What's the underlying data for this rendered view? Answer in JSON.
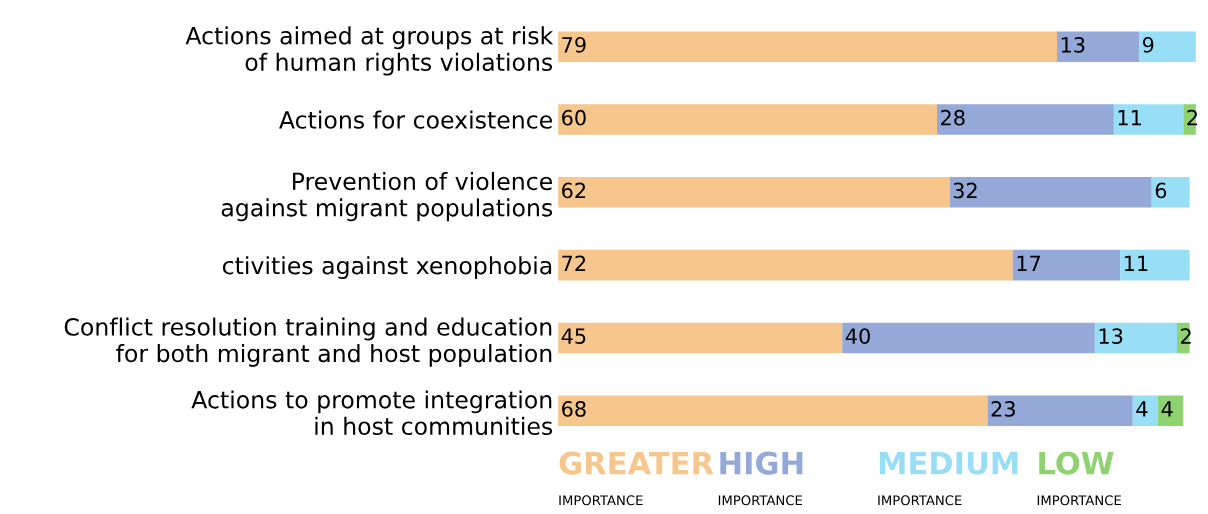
{
  "chart_data": {
    "type": "bar",
    "orientation": "horizontal",
    "stacked": true,
    "data_labels": true,
    "legend": "bottom",
    "grid": false,
    "tick_labels": "y",
    "categories": [
      "Actions aimed at groups at risk\nof human rights violations",
      "Actions for coexistence",
      "Prevention of violence\nagainst migrant populations",
      "ctivities against xenophobia",
      "Conflict resolution training and education\nfor both migrant and host population",
      "Actions to promote integration\nin host communities"
    ],
    "series": [
      {
        "name": "GREATER\nIMPORTANCE",
        "color": "#f6c68c",
        "values": [
          79,
          60,
          62,
          72,
          45,
          68
        ]
      },
      {
        "name": "HIGH\nIMPORTANCE",
        "color": "#94a9d8",
        "values": [
          13,
          28,
          32,
          17,
          40,
          23
        ]
      },
      {
        "name": "MEDIUM\nIMPORTANCE",
        "color": "#98def7",
        "values": [
          9,
          11,
          6,
          11,
          13,
          4
        ]
      },
      {
        "name": "LOW\nIMPORTANCE",
        "color": "#8ed36f",
        "values": [
          null,
          2,
          null,
          null,
          2,
          4
        ]
      }
    ]
  }
}
